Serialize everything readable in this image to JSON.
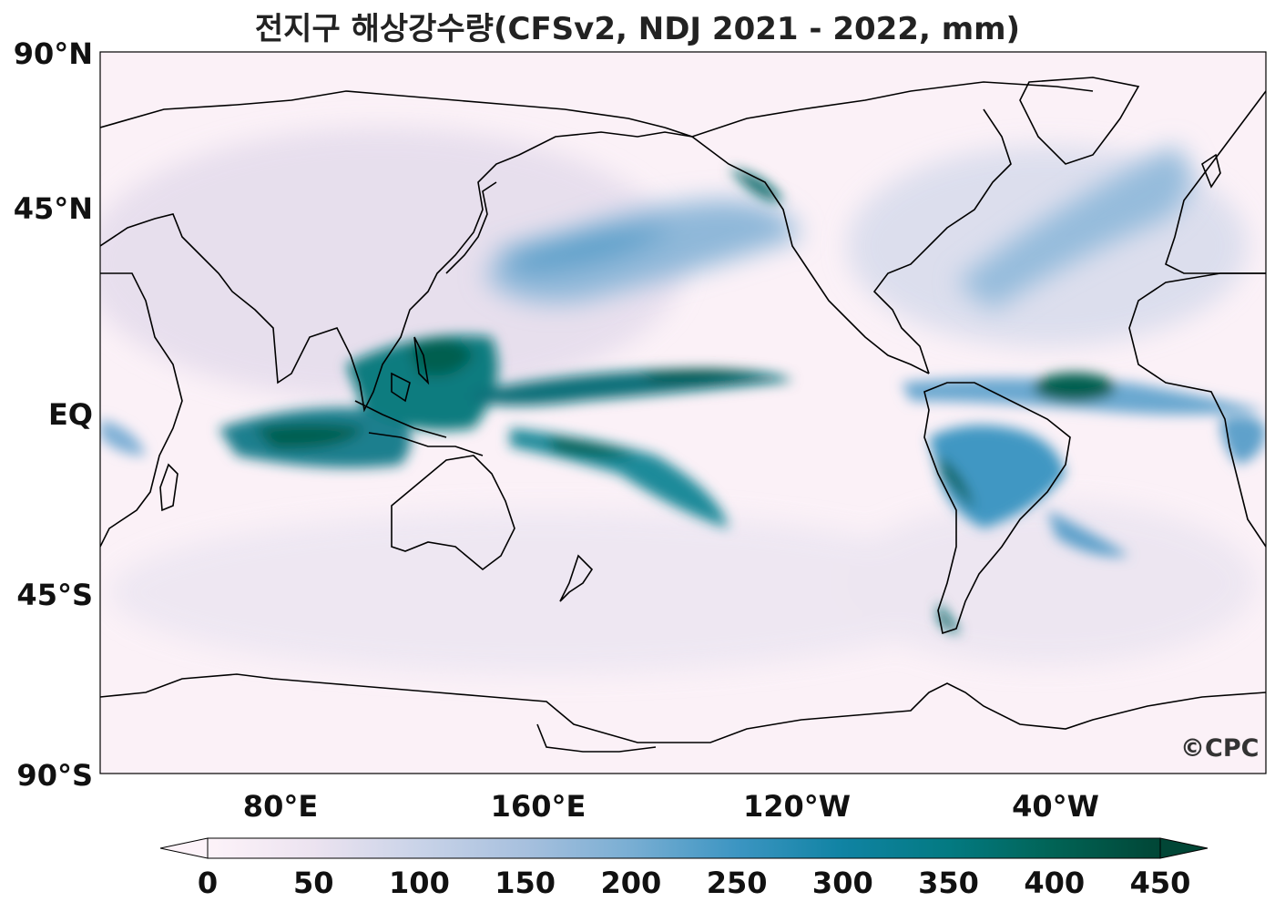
{
  "title": "전지구 해상강수량(CFSv2, NDJ 2021 - 2022, mm)",
  "logo_text": "©CPC",
  "y_axis": {
    "labels": [
      "90°N",
      "45°N",
      "EQ",
      "45°S",
      "90°S"
    ]
  },
  "x_axis": {
    "labels": [
      "80°E",
      "160°E",
      "120°W",
      "40°W"
    ]
  },
  "colorbar": {
    "ticks": [
      "0",
      "50",
      "100",
      "150",
      "200",
      "250",
      "300",
      "350",
      "400",
      "450"
    ],
    "colors": [
      "#fdf3f9",
      "#ece3f0",
      "#c9d3e8",
      "#a7c0de",
      "#79aed3",
      "#3c95c2",
      "#1083a3",
      "#037a82",
      "#016355",
      "#014636"
    ],
    "extend": "both"
  },
  "map": {
    "land_color": "#fbf3f8",
    "coast_color": "#000000"
  }
}
